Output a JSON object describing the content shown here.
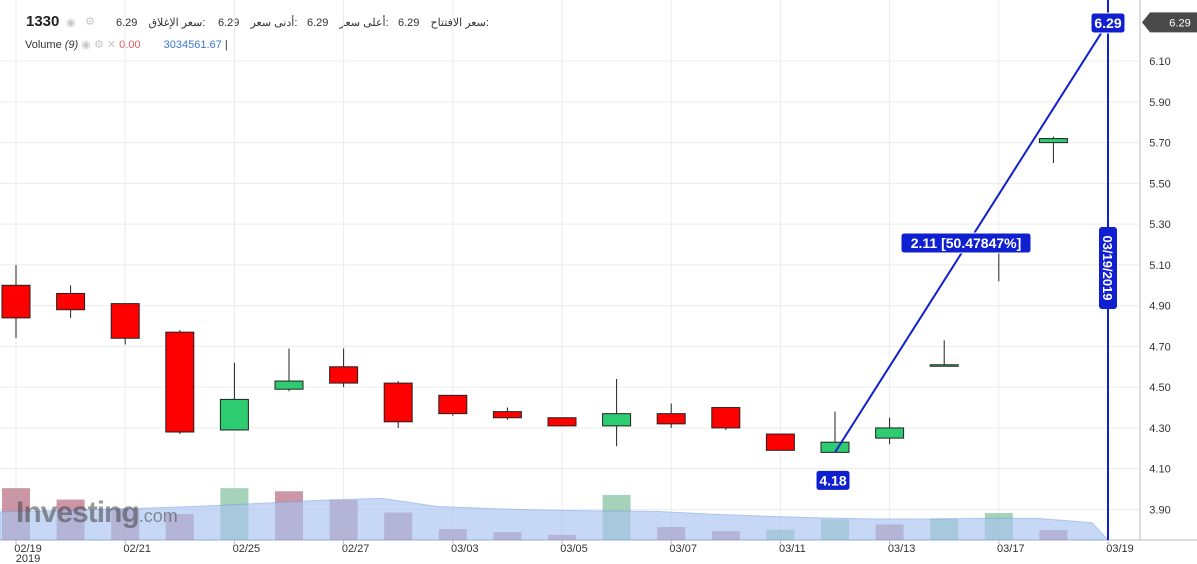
{
  "header": {
    "symbol": "1330",
    "open_label": "سعر الافتتاح:",
    "open_value": "6.29",
    "high_label": "أعلى سعر:",
    "high_value": "6.29",
    "low_label": "أدنى سعر:",
    "low_value": "6.29",
    "close_label": "سعر الإغلاق:",
    "close_value": "6.29",
    "volume_label": "Volume",
    "volume_period": "(9)",
    "volume_zero": "0.00",
    "volume_value": "3034561.67",
    "volume_sep": "|"
  },
  "logo": {
    "main": "Investing",
    "suffix": ".com"
  },
  "colors": {
    "up": "#2ecc71",
    "down": "#ff0000",
    "trendline": "#1020d0",
    "volume_area": "#a9c4f2"
  },
  "chart_data": {
    "type": "candlestick",
    "x_tick_labels": [
      "02/19",
      "02/21",
      "02/25",
      "02/27",
      "03/03",
      "03/05",
      "03/07",
      "03/11",
      "03/13",
      "03/17",
      "03/19"
    ],
    "x_year_label": "2019",
    "y_tick_labels": [
      "3.90",
      "4.10",
      "4.30",
      "4.50",
      "4.70",
      "4.90",
      "5.10",
      "5.30",
      "5.50",
      "5.70",
      "5.90",
      "6.10"
    ],
    "ylim": [
      3.75,
      6.4
    ],
    "last_price_label": "6.29",
    "candles": [
      {
        "date": "02/19",
        "open": 5.0,
        "high": 5.1,
        "low": 4.74,
        "close": 4.84
      },
      {
        "date": "02/20",
        "open": 4.96,
        "high": 5.0,
        "low": 4.84,
        "close": 4.88
      },
      {
        "date": "02/21",
        "open": 4.91,
        "high": 4.91,
        "low": 4.71,
        "close": 4.74
      },
      {
        "date": "02/24",
        "open": 4.77,
        "high": 4.78,
        "low": 4.27,
        "close": 4.28
      },
      {
        "date": "02/25",
        "open": 4.29,
        "high": 4.62,
        "low": 4.29,
        "close": 4.44
      },
      {
        "date": "02/26",
        "open": 4.49,
        "high": 4.69,
        "low": 4.48,
        "close": 4.53
      },
      {
        "date": "02/27",
        "open": 4.6,
        "high": 4.69,
        "low": 4.5,
        "close": 4.52
      },
      {
        "date": "02/28",
        "open": 4.52,
        "high": 4.53,
        "low": 4.3,
        "close": 4.33
      },
      {
        "date": "03/03",
        "open": 4.46,
        "high": 4.46,
        "low": 4.36,
        "close": 4.37
      },
      {
        "date": "03/04",
        "open": 4.38,
        "high": 4.4,
        "low": 4.34,
        "close": 4.35
      },
      {
        "date": "03/05",
        "open": 4.35,
        "high": 4.35,
        "low": 4.31,
        "close": 4.31
      },
      {
        "date": "03/06",
        "open": 4.31,
        "high": 4.54,
        "low": 4.21,
        "close": 4.37
      },
      {
        "date": "03/07",
        "open": 4.37,
        "high": 4.42,
        "low": 4.3,
        "close": 4.32
      },
      {
        "date": "03/10",
        "open": 4.4,
        "high": 4.4,
        "low": 4.29,
        "close": 4.3
      },
      {
        "date": "03/11",
        "open": 4.27,
        "high": 4.27,
        "low": 4.19,
        "close": 4.19
      },
      {
        "date": "03/12",
        "open": 4.18,
        "high": 4.38,
        "low": 4.18,
        "close": 4.23
      },
      {
        "date": "03/13",
        "open": 4.25,
        "high": 4.35,
        "low": 4.22,
        "close": 4.3
      },
      {
        "date": "03/14",
        "open": 4.61,
        "high": 4.73,
        "low": 4.61,
        "close": 4.61
      },
      {
        "date": "03/17",
        "open": 5.17,
        "high": 5.2,
        "low": 5.02,
        "close": 5.2
      },
      {
        "date": "03/18",
        "open": 5.7,
        "high": 5.73,
        "low": 5.6,
        "close": 5.72
      }
    ],
    "volume_bars": [
      {
        "date": "02/19",
        "value": 1.0,
        "direction": "down"
      },
      {
        "date": "02/20",
        "value": 0.78,
        "direction": "down"
      },
      {
        "date": "02/21",
        "value": 0.6,
        "direction": "down"
      },
      {
        "date": "02/24",
        "value": 0.5,
        "direction": "down"
      },
      {
        "date": "02/25",
        "value": 1.0,
        "direction": "up"
      },
      {
        "date": "02/26",
        "value": 0.94,
        "direction": "down"
      },
      {
        "date": "02/27",
        "value": 0.77,
        "direction": "down"
      },
      {
        "date": "02/28",
        "value": 0.53,
        "direction": "down"
      },
      {
        "date": "03/03",
        "value": 0.21,
        "direction": "down"
      },
      {
        "date": "03/04",
        "value": 0.15,
        "direction": "down"
      },
      {
        "date": "03/05",
        "value": 0.1,
        "direction": "down"
      },
      {
        "date": "03/06",
        "value": 0.87,
        "direction": "up"
      },
      {
        "date": "03/07",
        "value": 0.25,
        "direction": "down"
      },
      {
        "date": "03/10",
        "value": 0.17,
        "direction": "down"
      },
      {
        "date": "03/11",
        "value": 0.2,
        "direction": "up"
      },
      {
        "date": "03/12",
        "value": 0.4,
        "direction": "up"
      },
      {
        "date": "03/13",
        "value": 0.3,
        "direction": "down"
      },
      {
        "date": "03/14",
        "value": 0.41,
        "direction": "up"
      },
      {
        "date": "03/17",
        "value": 0.52,
        "direction": "up"
      },
      {
        "date": "03/18",
        "value": 0.19,
        "direction": "down"
      }
    ],
    "volume_ma": [
      0.52,
      0.54,
      0.57,
      0.6,
      0.64,
      0.69,
      0.74,
      0.77,
      0.62,
      0.58,
      0.55,
      0.54,
      0.53,
      0.48,
      0.44,
      0.41,
      0.39,
      0.39,
      0.4,
      0.4,
      0.32
    ],
    "trendline": {
      "start": {
        "date": "03/12",
        "price": 4.18,
        "label": "4.18"
      },
      "end": {
        "date": "03/19",
        "price": 6.29,
        "label": "6.29"
      },
      "change_label": "2.11 [50.47847%]"
    },
    "vertical_marker_label": "03/19/2019"
  }
}
